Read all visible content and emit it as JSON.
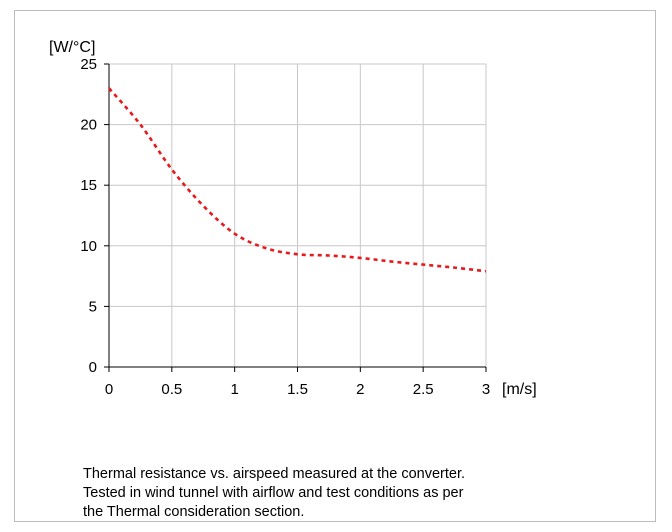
{
  "chart_data": {
    "type": "line",
    "x": [
      0,
      0.25,
      0.5,
      0.75,
      1.0,
      1.25,
      1.5,
      1.75,
      2.0,
      2.25,
      2.5,
      2.75,
      3.0
    ],
    "series": [
      {
        "values": [
          23,
          20,
          16.3,
          13.3,
          11,
          9.8,
          9.3,
          9.2,
          9.0,
          8.7,
          8.45,
          8.2,
          7.9
        ]
      }
    ],
    "xlabel": "[m/s]",
    "ylabel": "[W/°C]",
    "xticks": [
      "0",
      "0.5",
      "1",
      "1.5",
      "2",
      "2.5",
      "3"
    ],
    "yticks": [
      "0",
      "5",
      "10",
      "15",
      "20",
      "25"
    ],
    "xlim": [
      0,
      3
    ],
    "ylim": [
      0,
      25
    ],
    "grid": true,
    "legend": "none",
    "line_color": "#e8191d",
    "line_style": "dotted"
  },
  "caption": {
    "lines": [
      "Thermal resistance vs. airspeed measured at the converter.",
      "Tested in wind tunnel with airflow and test conditions as per",
      "the Thermal consideration section."
    ]
  }
}
